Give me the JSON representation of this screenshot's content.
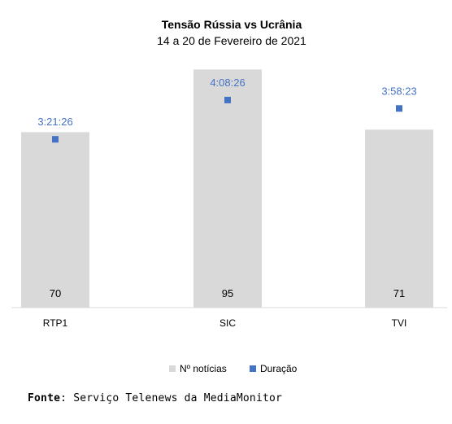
{
  "chart_data": {
    "type": "bar",
    "title": "Tensão Rússia vs Ucrânia",
    "subtitle": "14 a 20 de Fevereiro de 2021",
    "categories": [
      "RTP1",
      "SIC",
      "TVI"
    ],
    "series": [
      {
        "name": "Nº notícias",
        "kind": "bar",
        "color": "#d9d9d9",
        "values": [
          70,
          95,
          71
        ]
      },
      {
        "name": "Duração",
        "kind": "marker",
        "color": "#4472c4",
        "values": [
          "3:21:26",
          "4:08:26",
          "3:58:23"
        ],
        "values_seconds": [
          12086,
          14906,
          14303
        ]
      }
    ],
    "legend": {
      "position": "bottom"
    },
    "grid": false
  },
  "source": {
    "label": "Fonte",
    "text": ": Serviço Telenews da MediaMonitor"
  }
}
